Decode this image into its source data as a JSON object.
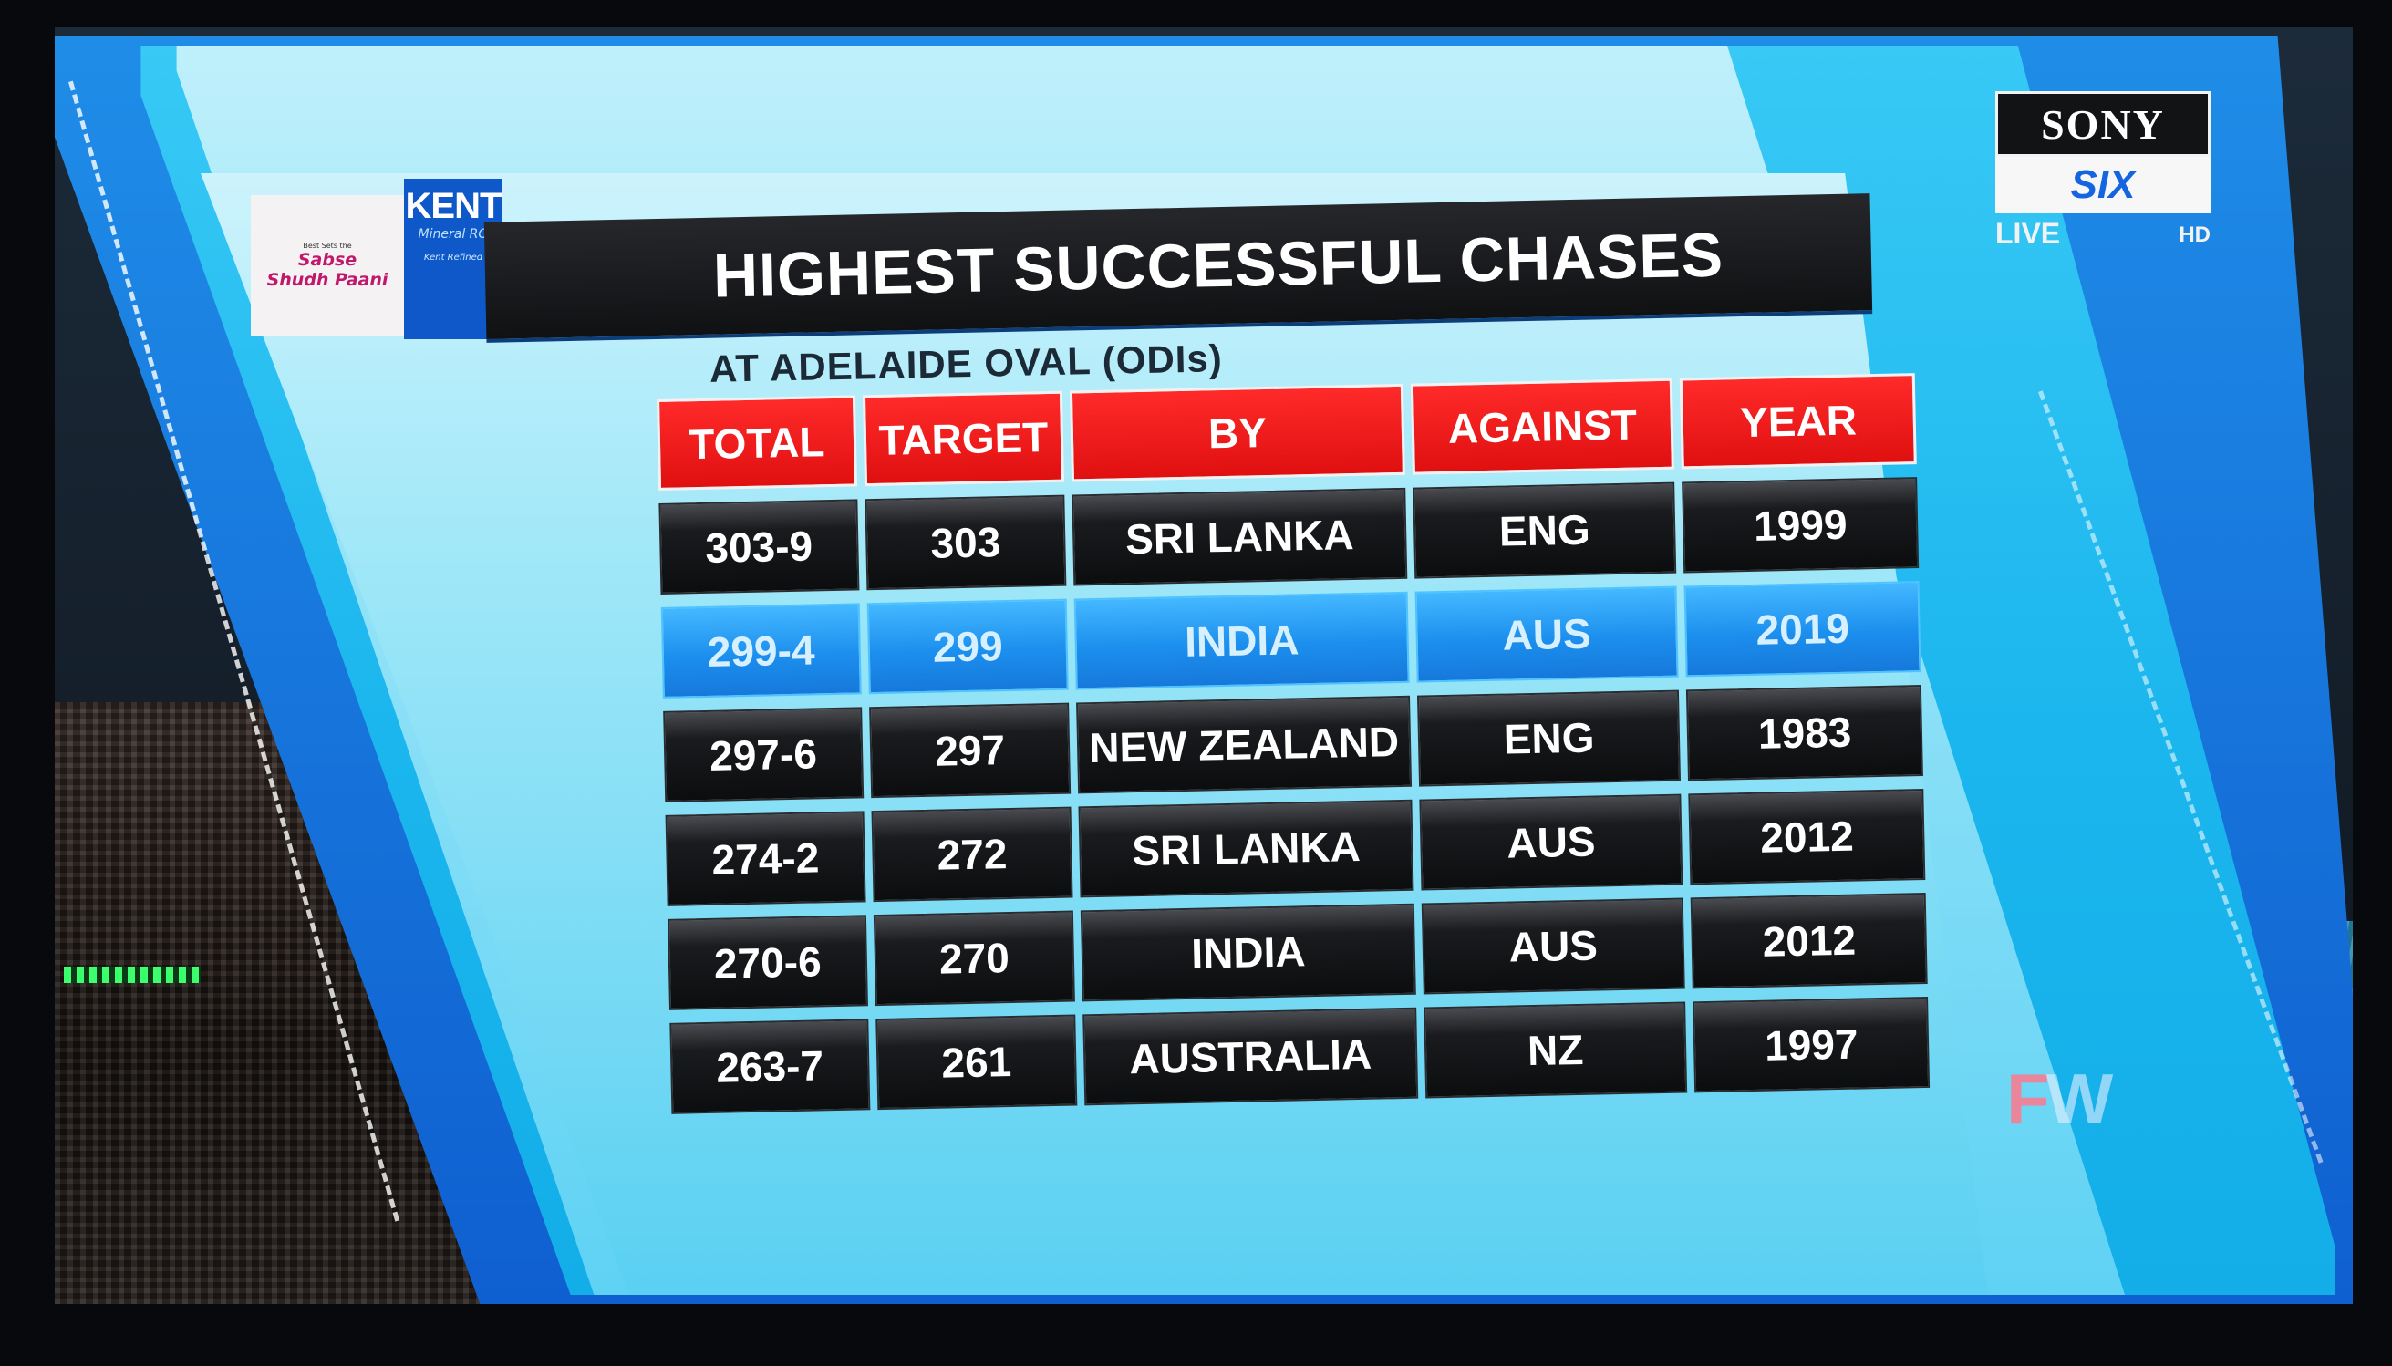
{
  "sponsor": {
    "tagline_small": "Best Sets the",
    "tagline_line1": "Sabse",
    "tagline_line2": "Shudh Paani",
    "brand": "KENT",
    "brand_sub": "Mineral RO",
    "brand_sub2": "Kent Refined"
  },
  "graphic": {
    "title": "HIGHEST SUCCESSFUL CHASES",
    "subtitle": "AT ADELAIDE OVAL (ODIs)"
  },
  "table": {
    "headers": [
      "TOTAL",
      "TARGET",
      "BY",
      "AGAINST",
      "YEAR"
    ],
    "rows": [
      [
        "303-9",
        "303",
        "SRI LANKA",
        "ENG",
        "1999"
      ],
      [
        "299-4",
        "299",
        "INDIA",
        "AUS",
        "2019"
      ],
      [
        "297-6",
        "297",
        "NEW ZEALAND",
        "ENG",
        "1983"
      ],
      [
        "274-2",
        "272",
        "SRI LANKA",
        "AUS",
        "2012"
      ],
      [
        "270-6",
        "270",
        "INDIA",
        "AUS",
        "2012"
      ],
      [
        "263-7",
        "261",
        "AUSTRALIA",
        "NZ",
        "1997"
      ]
    ],
    "highlighted_row": 1
  },
  "channel": {
    "name_top": "SONY",
    "name_bottom": "SIX",
    "live": "LIVE",
    "hd": "HD"
  },
  "watermark": {
    "left": "F",
    "right": "W"
  },
  "colors": {
    "header_red": "#e01010",
    "highlight_blue": "#1c8fee",
    "panel_cyan": "#38c9f5"
  }
}
